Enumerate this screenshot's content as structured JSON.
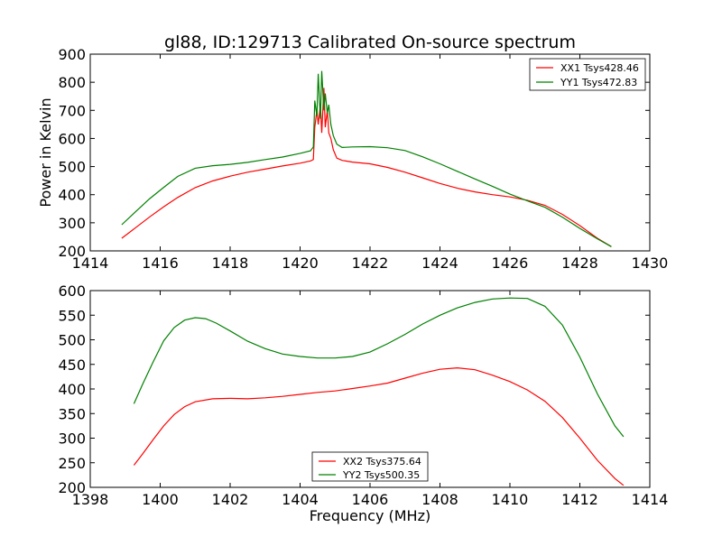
{
  "chart_data": [
    {
      "type": "line",
      "title": "gl88, ID:129713 Calibrated On-source spectrum",
      "xlabel": "",
      "ylabel": "Power in Kelvin",
      "xlim": [
        1414,
        1430
      ],
      "ylim": [
        200,
        900
      ],
      "xticks": [
        1414,
        1416,
        1418,
        1420,
        1422,
        1424,
        1426,
        1428,
        1430
      ],
      "yticks": [
        200,
        300,
        400,
        500,
        600,
        700,
        800,
        900
      ],
      "legend_position": "top-right",
      "series": [
        {
          "name": "XX1 Tsys428.46",
          "color": "#ff0000",
          "x": [
            1414.9,
            1415.3,
            1415.7,
            1416.1,
            1416.5,
            1417.0,
            1417.5,
            1418.0,
            1418.5,
            1419.0,
            1419.5,
            1420.0,
            1420.3,
            1420.38,
            1420.42,
            1420.48,
            1420.52,
            1420.58,
            1420.62,
            1420.68,
            1420.72,
            1420.78,
            1420.82,
            1420.88,
            1420.95,
            1421.05,
            1421.2,
            1421.5,
            1422.0,
            1422.5,
            1423.0,
            1423.5,
            1424.0,
            1424.5,
            1425.0,
            1425.5,
            1426.0,
            1426.5,
            1427.0,
            1427.5,
            1428.0,
            1428.5,
            1428.9
          ],
          "y": [
            245,
            283,
            321,
            357,
            390,
            425,
            449,
            466,
            480,
            491,
            502,
            512,
            520,
            525,
            640,
            700,
            650,
            720,
            620,
            780,
            640,
            700,
            620,
            600,
            560,
            530,
            522,
            516,
            510,
            497,
            480,
            460,
            440,
            423,
            410,
            400,
            392,
            380,
            362,
            330,
            290,
            245,
            215
          ]
        },
        {
          "name": "YY1 Tsys472.83",
          "color": "#008000",
          "x": [
            1414.9,
            1415.3,
            1415.7,
            1416.1,
            1416.5,
            1417.0,
            1417.5,
            1418.0,
            1418.5,
            1419.0,
            1419.5,
            1420.0,
            1420.3,
            1420.38,
            1420.42,
            1420.48,
            1420.52,
            1420.58,
            1420.62,
            1420.68,
            1420.72,
            1420.78,
            1420.82,
            1420.88,
            1420.95,
            1421.05,
            1421.2,
            1421.5,
            1422.0,
            1422.5,
            1423.0,
            1423.5,
            1424.0,
            1424.5,
            1425.0,
            1425.5,
            1426.0,
            1426.5,
            1427.0,
            1427.5,
            1428.0,
            1428.5,
            1428.9
          ],
          "y": [
            293,
            340,
            386,
            426,
            465,
            494,
            503,
            508,
            515,
            525,
            534,
            547,
            556,
            570,
            735,
            680,
            830,
            670,
            840,
            700,
            760,
            690,
            720,
            650,
            610,
            580,
            568,
            570,
            571,
            567,
            557,
            535,
            510,
            483,
            456,
            430,
            402,
            378,
            355,
            320,
            280,
            243,
            215
          ]
        }
      ]
    },
    {
      "type": "line",
      "title": "",
      "xlabel": "Frequency (MHz)",
      "ylabel": "",
      "xlim": [
        1398,
        1414
      ],
      "ylim": [
        200,
        600
      ],
      "xticks": [
        1398,
        1400,
        1402,
        1404,
        1406,
        1408,
        1410,
        1412,
        1414
      ],
      "yticks": [
        200,
        250,
        300,
        350,
        400,
        450,
        500,
        550,
        600
      ],
      "legend_position": "bottom-center",
      "series": [
        {
          "name": "XX2 Tsys375.64",
          "color": "#ff0000",
          "x": [
            1399.25,
            1399.5,
            1399.8,
            1400.1,
            1400.4,
            1400.7,
            1401.0,
            1401.5,
            1402.0,
            1402.5,
            1403.0,
            1403.5,
            1404.0,
            1404.5,
            1405.0,
            1405.5,
            1406.0,
            1406.5,
            1407.0,
            1407.5,
            1408.0,
            1408.5,
            1409.0,
            1409.5,
            1410.0,
            1410.5,
            1411.0,
            1411.5,
            1412.0,
            1412.5,
            1413.0,
            1413.25
          ],
          "y": [
            245,
            268,
            297,
            325,
            348,
            364,
            374,
            380,
            381,
            380,
            382,
            385,
            389,
            393,
            396,
            401,
            406,
            412,
            422,
            432,
            440,
            443,
            439,
            428,
            415,
            398,
            375,
            342,
            300,
            255,
            218,
            204
          ]
        },
        {
          "name": "YY2 Tsys500.35",
          "color": "#008000",
          "x": [
            1399.25,
            1399.5,
            1399.8,
            1400.1,
            1400.4,
            1400.7,
            1401.0,
            1401.3,
            1401.6,
            1402.0,
            1402.5,
            1403.0,
            1403.5,
            1404.0,
            1404.5,
            1405.0,
            1405.5,
            1406.0,
            1406.5,
            1407.0,
            1407.5,
            1408.0,
            1408.5,
            1409.0,
            1409.5,
            1410.0,
            1410.5,
            1411.0,
            1411.5,
            1412.0,
            1412.5,
            1413.0,
            1413.25
          ],
          "y": [
            370,
            410,
            455,
            498,
            525,
            540,
            545,
            543,
            534,
            518,
            497,
            482,
            471,
            466,
            463,
            463,
            466,
            475,
            492,
            511,
            532,
            550,
            565,
            576,
            583,
            585,
            584,
            568,
            530,
            465,
            390,
            325,
            303
          ]
        }
      ]
    }
  ]
}
